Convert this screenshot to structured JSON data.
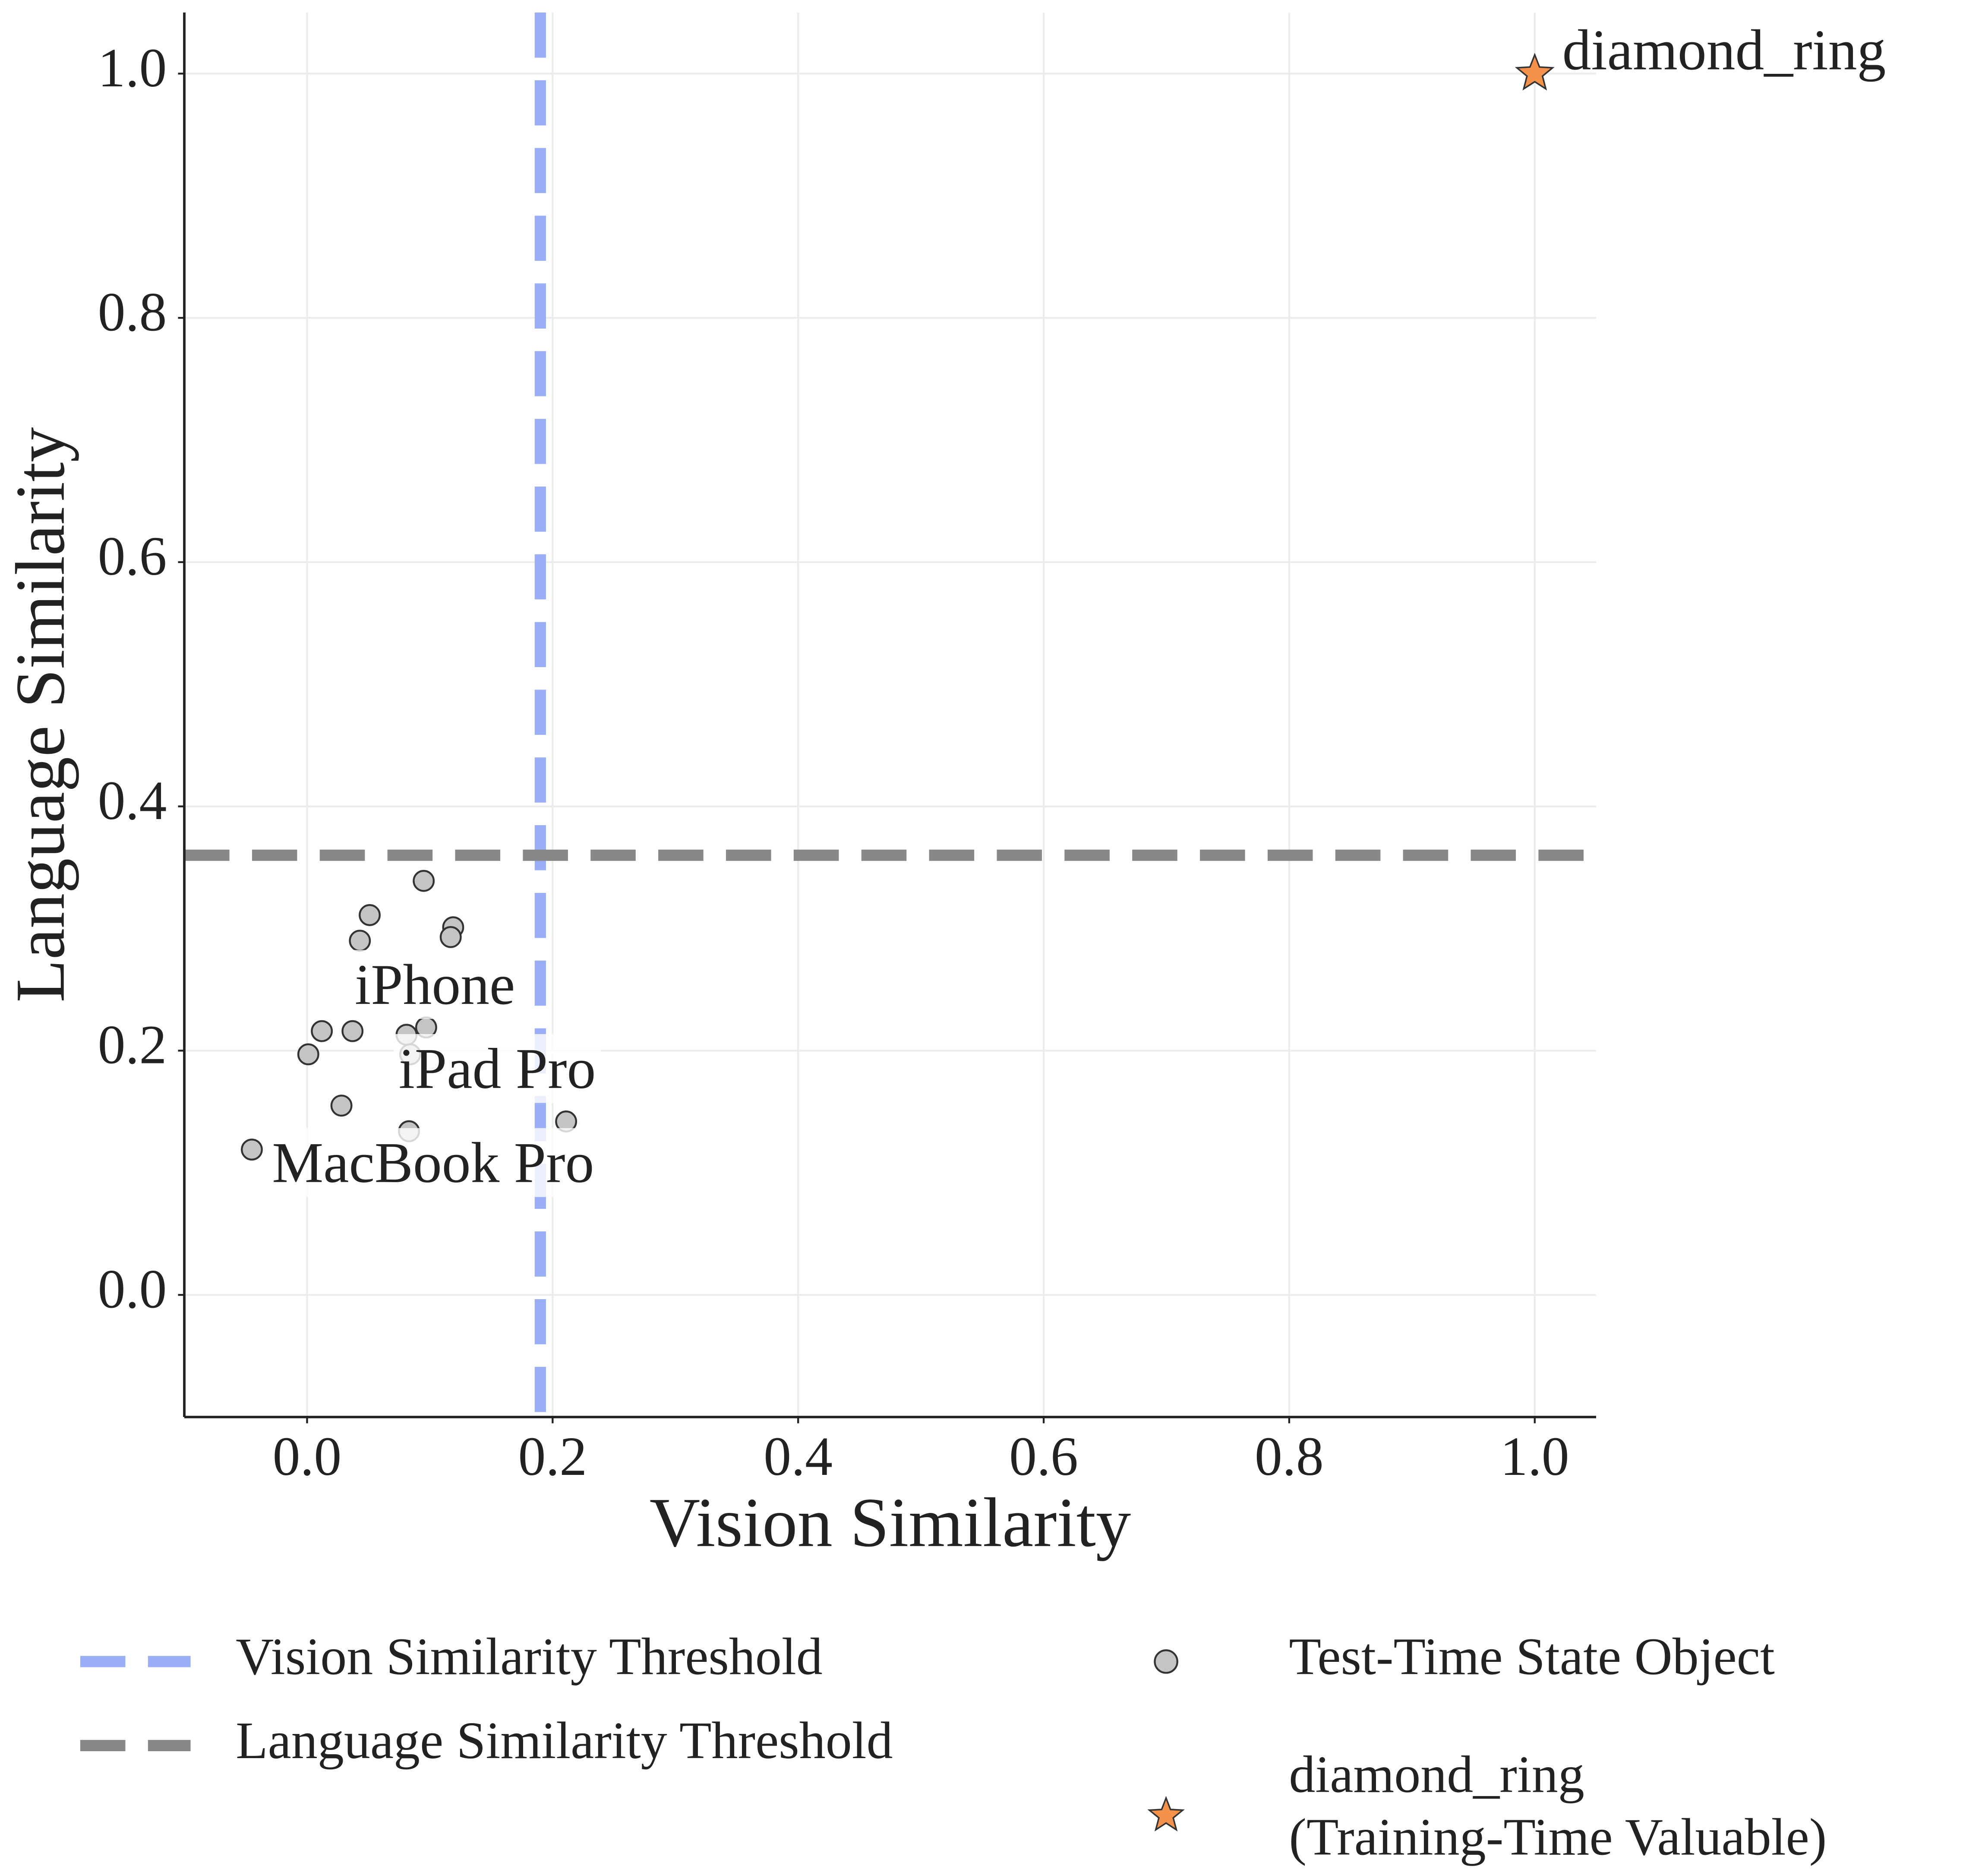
{
  "chart_data": {
    "type": "scatter",
    "x_label": "Vision Similarity",
    "y_label": "Language Similarity",
    "xlim": [
      -0.1,
      1.05
    ],
    "ylim": [
      -0.1,
      1.05
    ],
    "xticks": [
      {
        "value": 0,
        "label": "0.0"
      },
      0.2,
      0.4,
      0.6,
      0.8,
      {
        "value": 1,
        "label": "1.0"
      }
    ],
    "yticks": [
      {
        "value": 0,
        "label": "0.0"
      },
      0.2,
      0.4,
      0.6,
      0.8,
      {
        "value": 1,
        "label": "1.0"
      }
    ],
    "grid": true,
    "thresholds": [
      {
        "name": "Vision Similarity Threshold",
        "axis": "x",
        "value": 0.19,
        "color": "#9aaef5"
      },
      {
        "name": "Language Similarity Threshold",
        "axis": "y",
        "value": 0.36,
        "color": "#888888"
      }
    ],
    "series": [
      {
        "name": "Test-Time State Object",
        "marker": "circle",
        "color": "#c4c4c4",
        "x": [
          0.095,
          0.051,
          0.043,
          0.119,
          0.117,
          0.012,
          0.037,
          0.081,
          0.097,
          0.084,
          0.001,
          0.028,
          0.083,
          0.211,
          -0.045
        ],
        "values": [
          0.339,
          0.311,
          0.29,
          0.301,
          0.293,
          0.216,
          0.216,
          0.213,
          0.219,
          0.197,
          0.197,
          0.155,
          0.134,
          0.142,
          0.119
        ]
      },
      {
        "name": "diamond_ring\n(Training-Time Valuable)",
        "marker": "star",
        "color": "#f4914a",
        "x": [
          1.0
        ],
        "values": [
          1.0
        ],
        "point_labels": [
          "diamond_ring"
        ]
      }
    ],
    "annotations": [
      "iPhone",
      "iPad Pro",
      "MacBook Pro"
    ]
  }
}
